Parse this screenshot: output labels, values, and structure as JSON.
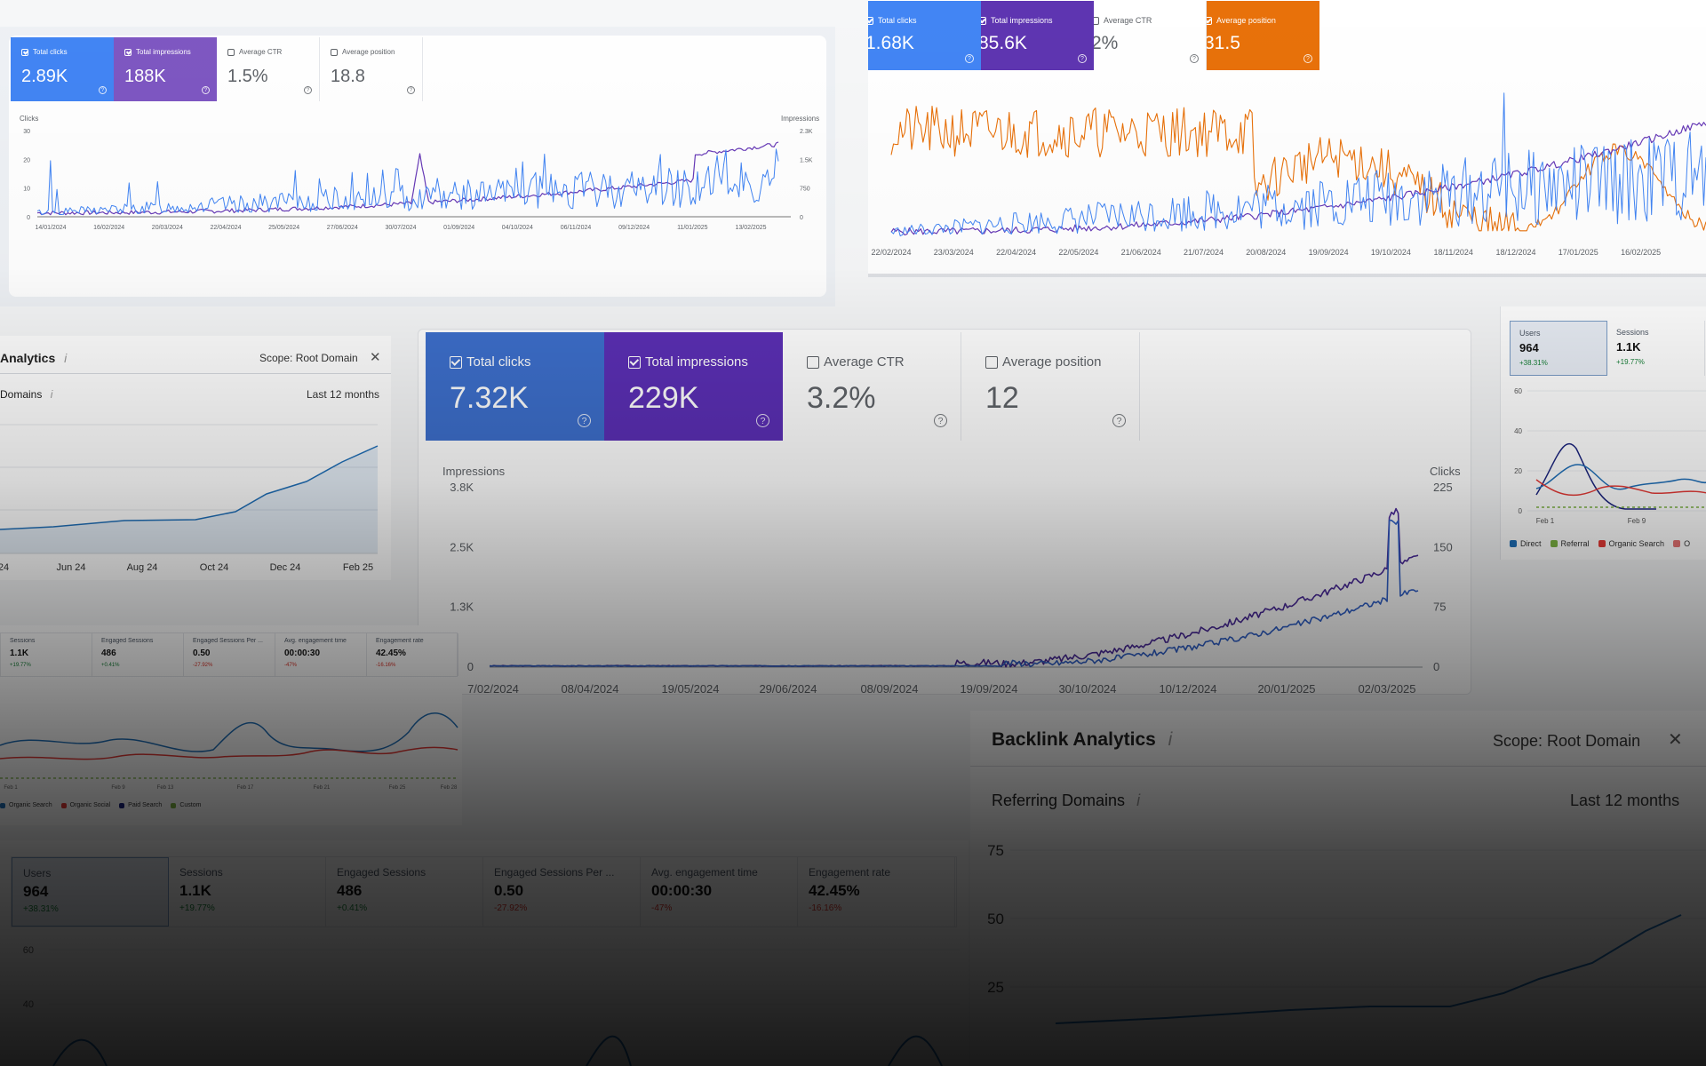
{
  "colors": {
    "clicks": "#4285f4",
    "impressions": "#673ab7",
    "ctr": "#f1f3f4",
    "position": "#e8710a",
    "semrush_line": "#1f6fb8",
    "ga_direct": "#1f6fb8",
    "ga_referral": "#7cb342",
    "ga_organic": "#e53935",
    "ga_dark": "#1a237e",
    "positive": "#188038",
    "negative": "#d93025"
  },
  "gsc_a": {
    "metrics": [
      {
        "label": "Total clicks",
        "value": "2.89K",
        "checked": true,
        "color": "#4285f4",
        "icon": "help-icon"
      },
      {
        "label": "Total impressions",
        "value": "188K",
        "checked": true,
        "color": "#7e57c2",
        "icon": "help-icon"
      },
      {
        "label": "Average CTR",
        "value": "1.5%",
        "checked": false,
        "icon": "help-icon"
      },
      {
        "label": "Average position",
        "value": "18.8",
        "checked": false,
        "icon": "help-icon"
      }
    ],
    "left_axis_title": "Clicks",
    "right_axis_title": "Impressions",
    "left_ticks": [
      "30",
      "20",
      "10",
      "0"
    ],
    "right_ticks": [
      "2.3K",
      "1.5K",
      "750",
      "0"
    ],
    "x_ticks": [
      "14/01/2024",
      "16/02/2024",
      "20/03/2024",
      "22/04/2024",
      "25/05/2024",
      "27/06/2024",
      "30/07/2024",
      "01/09/2024",
      "04/10/2024",
      "06/11/2024",
      "09/12/2024",
      "11/01/2025",
      "13/02/2025"
    ]
  },
  "gsc_b": {
    "metrics": [
      {
        "label": "Total clicks",
        "value": "1.68K",
        "checked": true,
        "color": "#4285f4",
        "icon": "help-icon"
      },
      {
        "label": "Total impressions",
        "value": "85.6K",
        "checked": true,
        "color": "#5e35b1",
        "icon": "help-icon"
      },
      {
        "label": "Average CTR",
        "value": "2%",
        "checked": false,
        "icon": "help-icon"
      },
      {
        "label": "Average position",
        "value": "31.5",
        "checked": true,
        "color": "#e8710a",
        "icon": "help-icon"
      }
    ],
    "x_ticks": [
      "22/02/2024",
      "23/03/2024",
      "22/04/2024",
      "22/05/2024",
      "21/06/2024",
      "21/07/2024",
      "20/08/2024",
      "19/09/2024",
      "19/10/2024",
      "18/11/2024",
      "18/12/2024",
      "17/01/2025",
      "16/02/2025"
    ]
  },
  "gsc_c": {
    "metrics": [
      {
        "label": "Total clicks",
        "value": "7.32K",
        "checked": true,
        "color": "#3d6fcc",
        "icon": "help-icon"
      },
      {
        "label": "Total impressions",
        "value": "229K",
        "checked": true,
        "color": "#5b2fb5",
        "icon": "help-icon"
      },
      {
        "label": "Average CTR",
        "value": "3.2%",
        "checked": false,
        "icon": "help-icon"
      },
      {
        "label": "Average position",
        "value": "12",
        "checked": false,
        "icon": "help-icon"
      }
    ],
    "left_axis_title": "Impressions",
    "right_axis_title": "Clicks",
    "left_ticks": [
      "3.8K",
      "2.5K",
      "1.3K",
      "0"
    ],
    "right_ticks": [
      "225",
      "150",
      "75",
      "0"
    ],
    "x_ticks": [
      "7/02/2024",
      "08/04/2024",
      "19/05/2024",
      "29/06/2024",
      "08/09/2024",
      "19/09/2024",
      "30/10/2024",
      "10/12/2024",
      "20/01/2025",
      "02/03/2025"
    ]
  },
  "semrush_a": {
    "title": "Analytics",
    "info_icon": "info-icon",
    "scope": "Scope: Root Domain",
    "close_icon": "close-icon",
    "subtitle": "Domains",
    "period": "Last 12 months",
    "x_ticks": [
      "24",
      "Jun 24",
      "Aug 24",
      "Oct 24",
      "Dec 24",
      "Feb 25"
    ]
  },
  "semrush_b": {
    "title": "Backlink Analytics",
    "info_icon": "info-icon",
    "scope": "Scope: Root Domain",
    "close_icon": "close-icon",
    "subtitle": "Referring Domains",
    "period": "Last 12 months",
    "y_ticks": [
      "75",
      "50",
      "25"
    ]
  },
  "ga_small_right": {
    "kpis": [
      {
        "label": "Users",
        "value": "964",
        "delta": "+38.31%",
        "positive": true
      },
      {
        "label": "Sessions",
        "value": "1.1K",
        "delta": "+19.77%",
        "positive": true
      }
    ],
    "y_ticks": [
      "60",
      "40",
      "20",
      "0"
    ],
    "x_ticks": [
      "Feb 1",
      "Feb 9"
    ],
    "legend": [
      "Direct",
      "Referral",
      "Organic Search",
      "O"
    ]
  },
  "ga_small_left": {
    "kpis": [
      {
        "label": "Sessions",
        "value": "1.1K",
        "delta": "+19.77%",
        "positive": true
      },
      {
        "label": "Engaged Sessions",
        "value": "486",
        "delta": "+0.41%",
        "positive": true
      },
      {
        "label": "Engaged Sessions Per ...",
        "value": "0.50",
        "delta": "-27.92%",
        "positive": false
      },
      {
        "label": "Avg. engagement time",
        "value": "00:00:30",
        "delta": "-47%",
        "positive": false
      },
      {
        "label": "Engagement rate",
        "value": "42.45%",
        "delta": "-16.16%",
        "positive": false
      }
    ],
    "x_ticks": [
      "Feb 1",
      "Feb 9",
      "Feb 13",
      "Feb 17",
      "Feb 21",
      "Feb 25",
      "Feb 28"
    ],
    "legend": [
      "Organic Search",
      "Organic Social",
      "Paid Search",
      "Custom"
    ]
  },
  "ga_big": {
    "kpis": [
      {
        "label": "Users",
        "value": "964",
        "delta": "+38.31%",
        "positive": true
      },
      {
        "label": "Sessions",
        "value": "1.1K",
        "delta": "+19.77%",
        "positive": true
      },
      {
        "label": "Engaged Sessions",
        "value": "486",
        "delta": "+0.41%",
        "positive": true
      },
      {
        "label": "Engaged Sessions Per ...",
        "value": "0.50",
        "delta": "-27.92%",
        "positive": false
      },
      {
        "label": "Avg. engagement time",
        "value": "00:00:30",
        "delta": "-47%",
        "positive": false
      },
      {
        "label": "Engagement rate",
        "value": "42.45%",
        "delta": "-16.16%",
        "positive": false
      }
    ],
    "y_ticks": [
      "60",
      "40"
    ]
  }
}
